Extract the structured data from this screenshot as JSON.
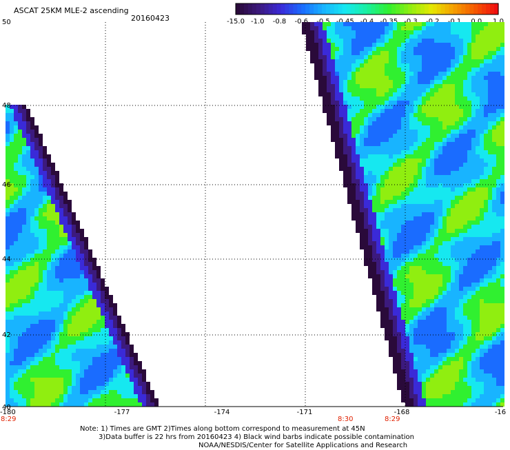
{
  "header": {
    "title": "ASCAT 25KM MLE-2 ascending",
    "date": "20160423"
  },
  "colorbar": {
    "labels": [
      "-15.0",
      "-1.0",
      "-0.8",
      "-0.6",
      "-0.5",
      "-0.45",
      "-0.4",
      "-0.35",
      "-0.3",
      "-0.2",
      "-0.1",
      "0.0",
      "1.0"
    ],
    "colors": [
      "#2a0a3a",
      "#3c1a7e",
      "#3a2ad8",
      "#1a6cff",
      "#18b4ff",
      "#16e8f0",
      "#1af0a0",
      "#30f030",
      "#90ee10",
      "#e6e800",
      "#f5a000",
      "#f55a00",
      "#f01010"
    ]
  },
  "map": {
    "lon_ticks": [
      "-180",
      "-177",
      "-174",
      "-171",
      "-168",
      "-16"
    ],
    "lat_ticks": [
      "40",
      "42",
      "44",
      "46",
      "48",
      "50"
    ],
    "time_labels": [
      "8:29",
      "8:30",
      "8:29"
    ],
    "time_color": "#e02000"
  },
  "notes": [
    "Note: 1) Times are GMT 2)Times along bottom correspond to measurement at 45N",
    "3)Data buffer is 22 hrs from 20160423 4) Black wind barbs indicate possible contamination",
    "NOAA/NESDIS/Center for Satellite Applications and Research"
  ]
}
